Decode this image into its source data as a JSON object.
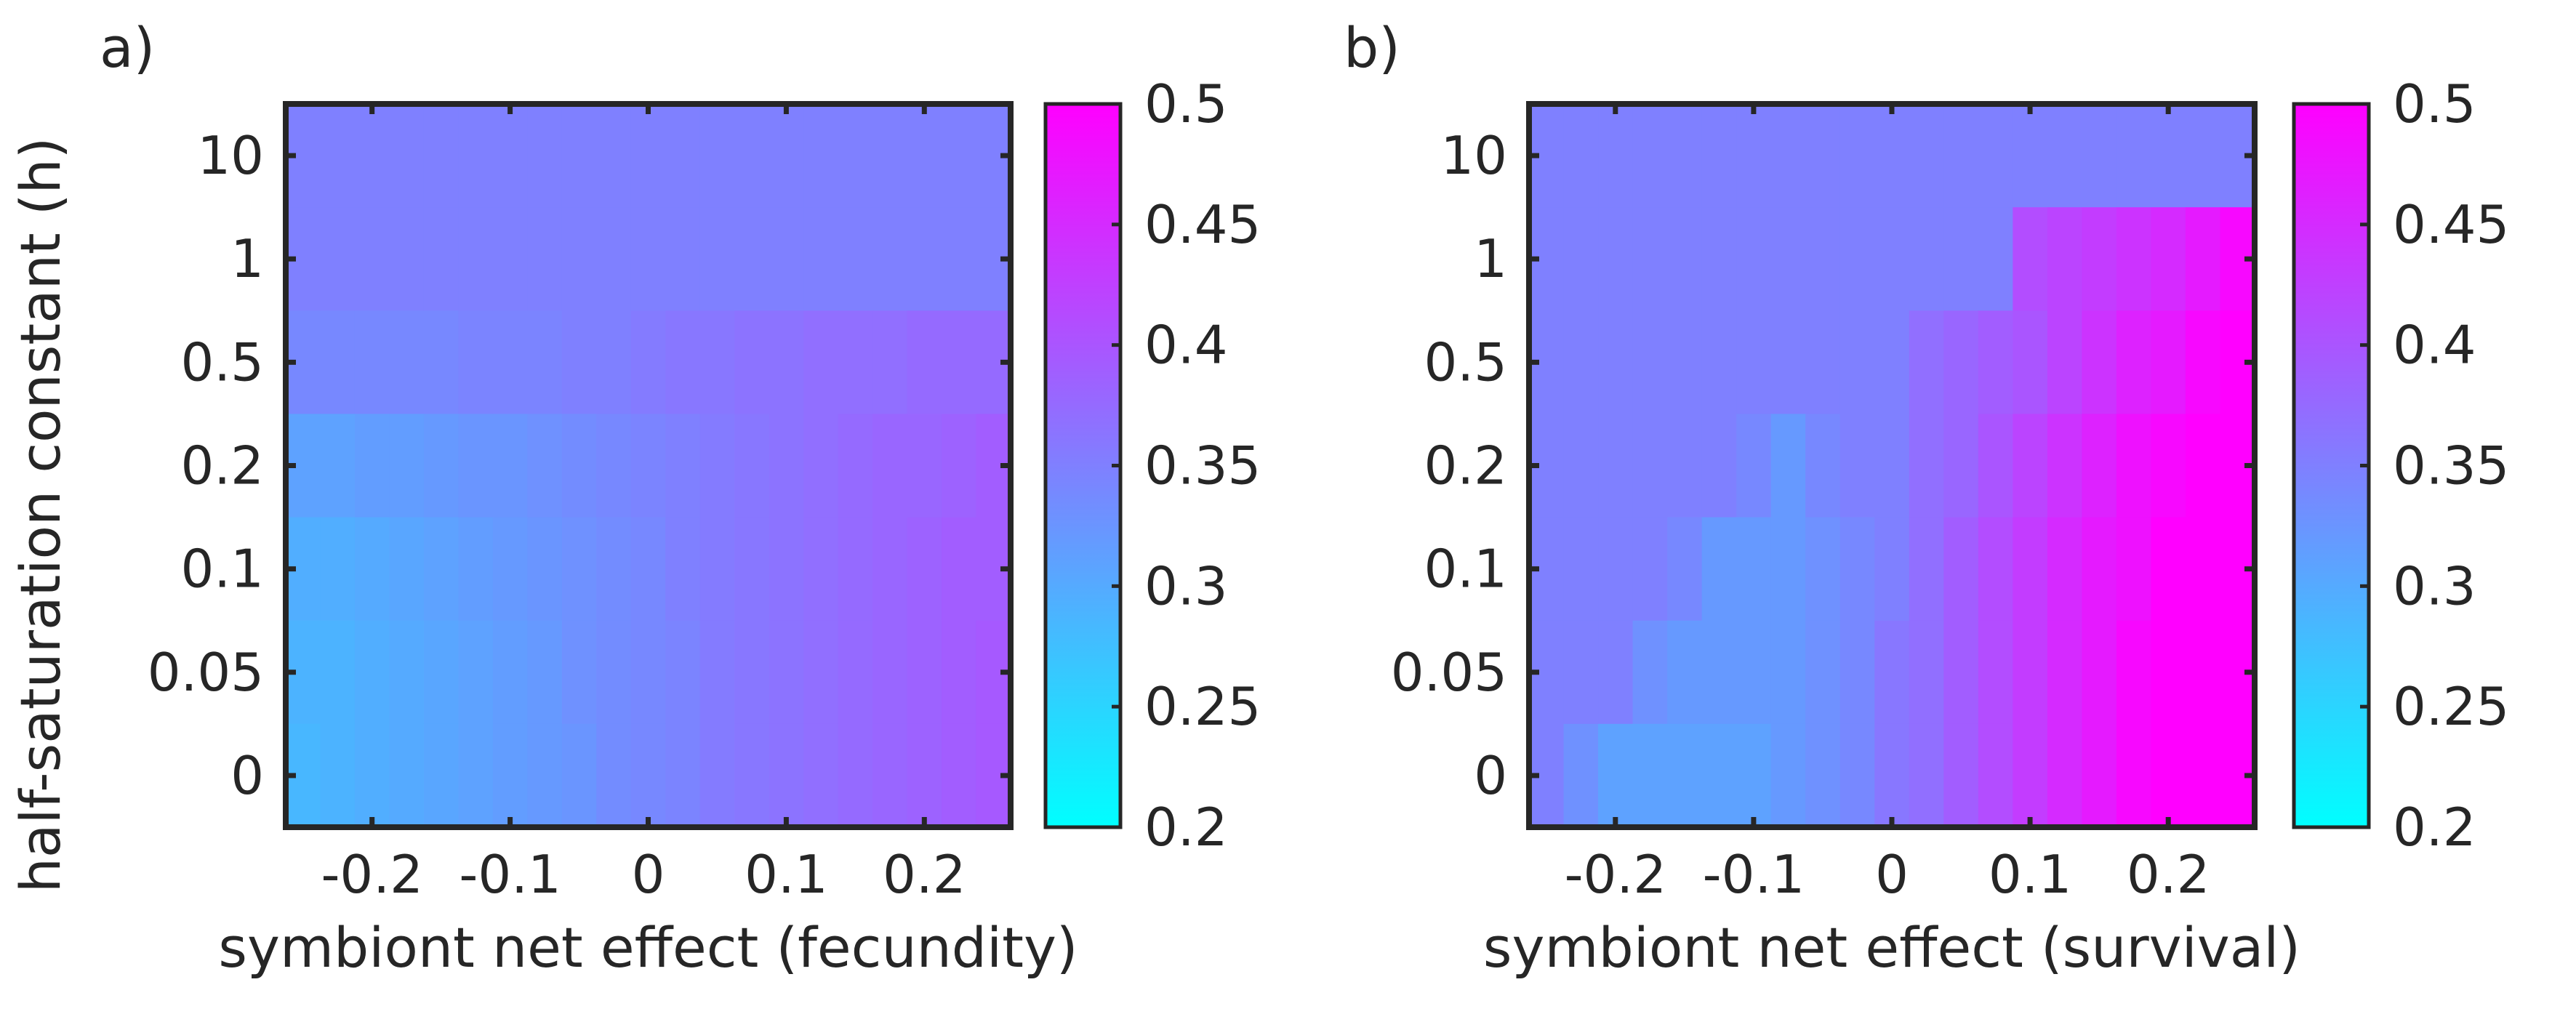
{
  "chart_data": [
    {
      "type": "heatmap",
      "panel_label": "a)",
      "xlabel": "symbiont net effect (fecundity)",
      "ylabel": "half-saturation constant (h)",
      "x_ticks": [
        "-0.2",
        "-0.1",
        "0",
        "0.1",
        "0.2"
      ],
      "y_ticks": [
        "10",
        "1",
        "0.5",
        "0.2",
        "0.1",
        "0.05",
        "0"
      ],
      "x": [
        -0.25,
        -0.225,
        -0.2,
        -0.175,
        -0.15,
        -0.125,
        -0.1,
        -0.075,
        -0.05,
        -0.025,
        0,
        0.025,
        0.05,
        0.075,
        0.1,
        0.125,
        0.15,
        0.175,
        0.2,
        0.225,
        0.25
      ],
      "y": [
        "10",
        "1",
        "0.5",
        "0.2",
        "0.1",
        "0.05",
        "0"
      ],
      "z": [
        [
          0.35,
          0.35,
          0.35,
          0.35,
          0.35,
          0.35,
          0.35,
          0.35,
          0.35,
          0.35,
          0.35,
          0.35,
          0.35,
          0.35,
          0.35,
          0.35,
          0.35,
          0.35,
          0.35,
          0.35,
          0.35
        ],
        [
          0.35,
          0.35,
          0.35,
          0.35,
          0.35,
          0.35,
          0.35,
          0.35,
          0.35,
          0.35,
          0.35,
          0.35,
          0.35,
          0.35,
          0.35,
          0.35,
          0.35,
          0.35,
          0.35,
          0.35,
          0.35
        ],
        [
          0.34,
          0.34,
          0.34,
          0.34,
          0.34,
          0.345,
          0.345,
          0.345,
          0.35,
          0.35,
          0.355,
          0.36,
          0.36,
          0.365,
          0.365,
          0.37,
          0.37,
          0.37,
          0.375,
          0.375,
          0.375
        ],
        [
          0.31,
          0.31,
          0.315,
          0.315,
          0.32,
          0.325,
          0.325,
          0.33,
          0.335,
          0.34,
          0.345,
          0.35,
          0.355,
          0.36,
          0.365,
          0.37,
          0.375,
          0.38,
          0.38,
          0.385,
          0.39
        ],
        [
          0.295,
          0.295,
          0.3,
          0.305,
          0.31,
          0.315,
          0.32,
          0.325,
          0.33,
          0.335,
          0.34,
          0.35,
          0.355,
          0.36,
          0.365,
          0.37,
          0.375,
          0.38,
          0.385,
          0.39,
          0.39
        ],
        [
          0.29,
          0.29,
          0.295,
          0.3,
          0.305,
          0.31,
          0.315,
          0.32,
          0.33,
          0.335,
          0.34,
          0.345,
          0.355,
          0.36,
          0.365,
          0.37,
          0.375,
          0.38,
          0.385,
          0.39,
          0.395
        ],
        [
          0.285,
          0.29,
          0.295,
          0.3,
          0.305,
          0.31,
          0.315,
          0.32,
          0.325,
          0.335,
          0.34,
          0.345,
          0.355,
          0.36,
          0.365,
          0.37,
          0.375,
          0.38,
          0.385,
          0.39,
          0.395
        ]
      ],
      "colorbar": {
        "min": 0.2,
        "max": 0.5,
        "ticks": [
          "0.2",
          "0.25",
          "0.3",
          "0.35",
          "0.4",
          "0.45",
          "0.5"
        ],
        "colormap": "cool",
        "color_low": "#00ffff",
        "color_high": "#ff00ff"
      }
    },
    {
      "type": "heatmap",
      "panel_label": "b)",
      "xlabel": "symbiont net effect (survival)",
      "ylabel": "",
      "x_ticks": [
        "-0.2",
        "-0.1",
        "0",
        "0.1",
        "0.2"
      ],
      "y_ticks": [
        "10",
        "1",
        "0.5",
        "0.2",
        "0.1",
        "0.05",
        "0"
      ],
      "x": [
        -0.25,
        -0.225,
        -0.2,
        -0.175,
        -0.15,
        -0.125,
        -0.1,
        -0.075,
        -0.05,
        -0.025,
        0,
        0.025,
        0.05,
        0.075,
        0.1,
        0.125,
        0.15,
        0.175,
        0.2,
        0.225,
        0.25
      ],
      "y": [
        "10",
        "1",
        "0.5",
        "0.2",
        "0.1",
        "0.05",
        "0"
      ],
      "z": [
        [
          0.35,
          0.35,
          0.35,
          0.35,
          0.35,
          0.35,
          0.35,
          0.35,
          0.35,
          0.35,
          0.35,
          0.35,
          0.35,
          0.35,
          0.35,
          0.35,
          0.35,
          0.35,
          0.35,
          0.35,
          0.35
        ],
        [
          0.35,
          0.35,
          0.35,
          0.35,
          0.35,
          0.35,
          0.35,
          0.35,
          0.35,
          0.35,
          0.35,
          0.35,
          0.35,
          0.35,
          0.41,
          0.42,
          0.43,
          0.44,
          0.45,
          0.47,
          0.49
        ],
        [
          0.35,
          0.35,
          0.35,
          0.35,
          0.35,
          0.35,
          0.35,
          0.35,
          0.35,
          0.35,
          0.35,
          0.37,
          0.38,
          0.39,
          0.4,
          0.42,
          0.44,
          0.46,
          0.47,
          0.49,
          0.5
        ],
        [
          0.35,
          0.35,
          0.35,
          0.35,
          0.35,
          0.35,
          0.34,
          0.32,
          0.34,
          0.35,
          0.35,
          0.37,
          0.38,
          0.4,
          0.42,
          0.44,
          0.46,
          0.48,
          0.49,
          0.5,
          0.5
        ],
        [
          0.35,
          0.35,
          0.35,
          0.35,
          0.34,
          0.32,
          0.32,
          0.32,
          0.33,
          0.34,
          0.35,
          0.37,
          0.39,
          0.41,
          0.43,
          0.45,
          0.47,
          0.48,
          0.5,
          0.5,
          0.5
        ],
        [
          0.35,
          0.35,
          0.35,
          0.33,
          0.32,
          0.32,
          0.32,
          0.32,
          0.33,
          0.34,
          0.36,
          0.37,
          0.39,
          0.41,
          0.43,
          0.45,
          0.47,
          0.49,
          0.5,
          0.5,
          0.5
        ],
        [
          0.35,
          0.33,
          0.31,
          0.31,
          0.31,
          0.31,
          0.31,
          0.32,
          0.33,
          0.34,
          0.36,
          0.37,
          0.39,
          0.41,
          0.43,
          0.45,
          0.47,
          0.49,
          0.5,
          0.5,
          0.5
        ]
      ],
      "colorbar": {
        "min": 0.2,
        "max": 0.5,
        "ticks": [
          "0.2",
          "0.25",
          "0.3",
          "0.35",
          "0.4",
          "0.45",
          "0.5"
        ],
        "colormap": "cool",
        "color_low": "#00ffff",
        "color_high": "#ff00ff"
      }
    }
  ]
}
